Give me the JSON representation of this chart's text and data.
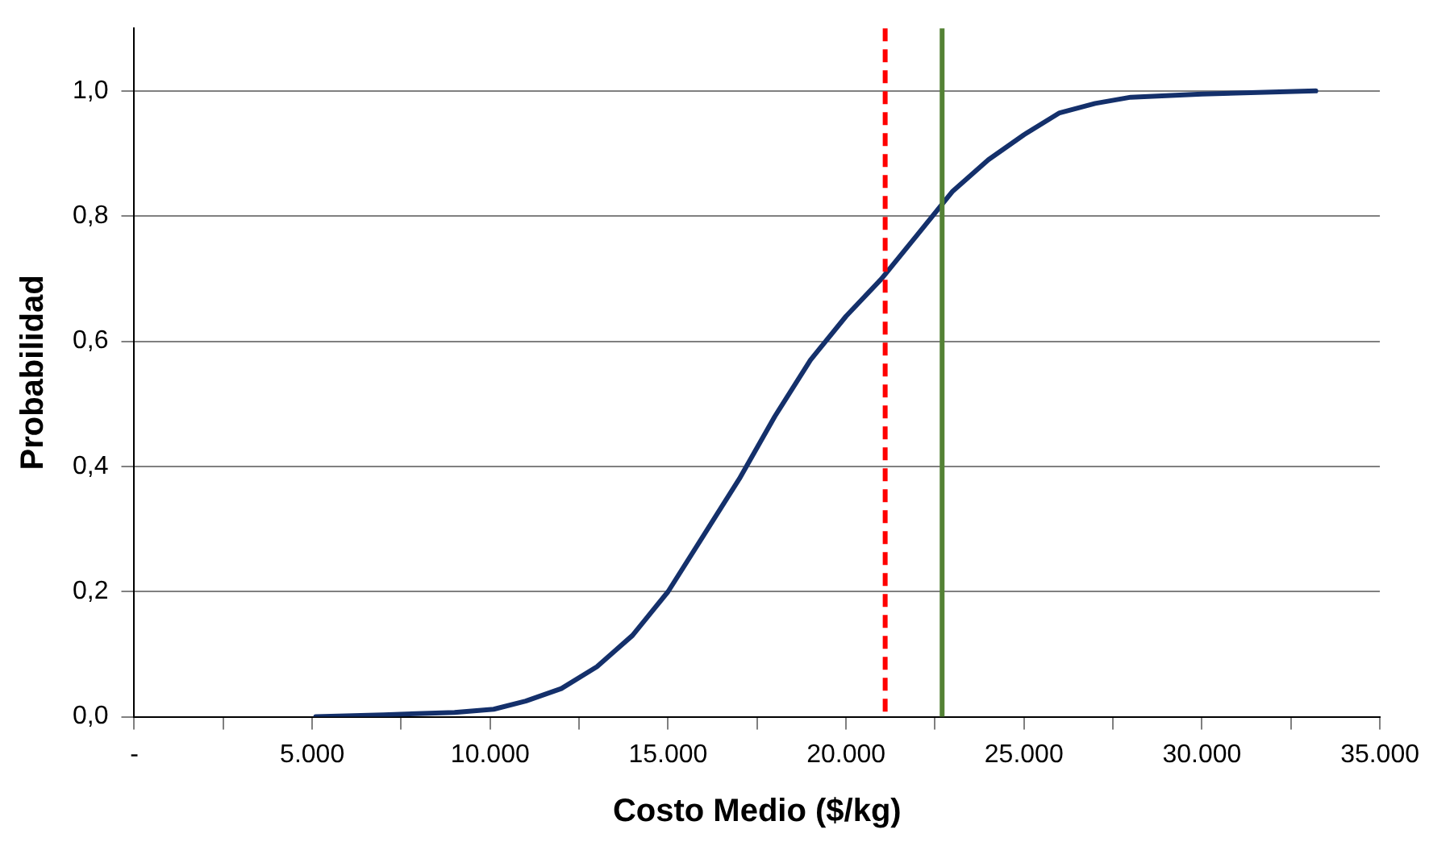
{
  "chart_data": {
    "type": "line",
    "xlabel": "Costo Medio ($/kg)",
    "ylabel": "Probabilidad",
    "x": [
      5100,
      7000,
      9000,
      10100,
      11000,
      12000,
      13000,
      14000,
      15000,
      16000,
      17000,
      18000,
      19000,
      20000,
      21000,
      22000,
      23000,
      24000,
      25000,
      26000,
      27000,
      28000,
      30000,
      33200
    ],
    "series": [
      {
        "color": "#14306b",
        "values": [
          0,
          0.003,
          0.007,
          0.012,
          0.025,
          0.045,
          0.08,
          0.13,
          0.2,
          0.29,
          0.38,
          0.48,
          0.57,
          0.64,
          0.7,
          0.77,
          0.84,
          0.89,
          0.93,
          0.965,
          0.98,
          0.99,
          0.995,
          1.0
        ]
      }
    ],
    "xlim": [
      0,
      35000
    ],
    "xticks": [
      {
        "value": 0,
        "label": "-"
      },
      {
        "value": 2500,
        "label": null
      },
      {
        "value": 5000,
        "label": "5.000"
      },
      {
        "value": 7500,
        "label": null
      },
      {
        "value": 10000,
        "label": "10.000"
      },
      {
        "value": 12500,
        "label": null
      },
      {
        "value": 15000,
        "label": "15.000"
      },
      {
        "value": 17500,
        "label": null
      },
      {
        "value": 20000,
        "label": "20.000"
      },
      {
        "value": 22500,
        "label": null
      },
      {
        "value": 25000,
        "label": "25.000"
      },
      {
        "value": 27500,
        "label": null
      },
      {
        "value": 30000,
        "label": "30.000"
      },
      {
        "value": 32500,
        "label": null
      },
      {
        "value": 35000,
        "label": "35.000"
      }
    ],
    "ylim": [
      0,
      1.1
    ],
    "yticks": [
      {
        "value": 0,
        "label": "0,0"
      },
      {
        "value": 0.2,
        "label": "0,2"
      },
      {
        "value": 0.4,
        "label": "0,4"
      },
      {
        "value": 0.6,
        "label": "0,6"
      },
      {
        "value": 0.8,
        "label": "0,8"
      },
      {
        "value": 1,
        "label": "1,0"
      }
    ],
    "ref_lines": [
      {
        "axis": "x",
        "value": 21100,
        "color": "#ff0000",
        "line_style": "dashed"
      },
      {
        "axis": "x",
        "value": 22700,
        "color": "#548235",
        "line_style": "solid"
      }
    ],
    "grid": "y",
    "legend": false,
    "marker": "none",
    "line_style": "solid"
  }
}
